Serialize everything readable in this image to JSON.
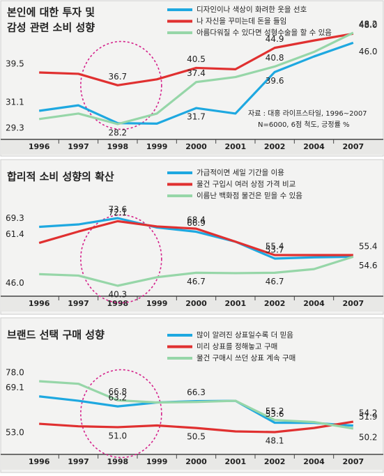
{
  "chart_data": [
    {
      "type": "line",
      "title": [
        "본인에 대한 투자 및",
        "감성 관련 소비 성향"
      ],
      "annotations": [
        "자료 : 대홍 라이프스타일, 1996~2007",
        "N=6000, 6점 척도, 긍정률 %"
      ],
      "categories": [
        "1996",
        "1997",
        "1998",
        "1999",
        "2000",
        "2001",
        "2002",
        "2004",
        "2007"
      ],
      "series": [
        {
          "name": "디자인이나 색상이 화려한 옷을 선호",
          "color": "#1ea8e0",
          "values": [
            31.1,
            32.3,
            28.4,
            28.3,
            31.7,
            30.5,
            39.6,
            43.0,
            46.0
          ],
          "value_labels": [
            "31.1",
            null,
            null,
            null,
            "31.7",
            null,
            "39.6",
            null,
            "46.0"
          ]
        },
        {
          "name": "나 자신을 꾸미는데 돈을 들임",
          "color": "#e03030",
          "values": [
            39.5,
            39.2,
            36.7,
            38.0,
            40.5,
            40.2,
            44.9,
            46.5,
            48.0
          ],
          "value_labels": [
            "39.5",
            null,
            "36.7",
            null,
            "40.5",
            null,
            "44.9",
            null,
            "48.0"
          ]
        },
        {
          "name": "아름다워질 수 있다면 성형수술을 할 수 있음",
          "color": "#96d6a8",
          "values": [
            29.3,
            30.5,
            28.2,
            30.5,
            37.4,
            38.5,
            40.8,
            44.0,
            48.2
          ],
          "value_labels": [
            "29.3",
            null,
            "28.2",
            null,
            "37.4",
            null,
            "40.8",
            null,
            "48.2"
          ]
        }
      ]
    },
    {
      "type": "line",
      "title": "합리적 소비 성향의 확산",
      "categories": [
        "1996",
        "1997",
        "1998",
        "1999",
        "2000",
        "2001",
        "2002",
        "2004",
        "2007"
      ],
      "series": [
        {
          "name": "가급적이면 세일 기간을 이용",
          "color": "#1ea8e0",
          "values": [
            69.3,
            70.5,
            73.6,
            69.0,
            66.9,
            62.0,
            53.7,
            54.3,
            54.6
          ],
          "value_labels": [
            "69.3",
            null,
            "73.6",
            null,
            "66.9",
            null,
            "53.7",
            null,
            "54.6"
          ]
        },
        {
          "name": "물건 구입시 여러 상점 가격 비교",
          "color": "#e03030",
          "values": [
            61.4,
            67.0,
            72.1,
            69.5,
            68.4,
            62.0,
            55.4,
            55.4,
            55.4
          ],
          "value_labels": [
            "61.4",
            null,
            "72.1",
            null,
            "68.4",
            null,
            "55.4",
            null,
            "55.4"
          ]
        },
        {
          "name": "이름난 백화점 물건은 믿을 수 있음",
          "color": "#96d6a8",
          "values": [
            46.0,
            45.3,
            40.3,
            44.5,
            46.7,
            46.5,
            46.7,
            48.5,
            54.6
          ],
          "value_labels": [
            "46.0",
            null,
            "40.3",
            null,
            "46.7",
            null,
            "46.7",
            null,
            null
          ]
        }
      ]
    },
    {
      "type": "line",
      "title": "브랜드 선택 구매 성향",
      "categories": [
        "1996",
        "1997",
        "1998",
        "1999",
        "2000",
        "2001",
        "2002",
        "2004",
        "2007"
      ],
      "series": [
        {
          "name": "많이 알려진 상표일수록 더 믿음",
          "color": "#1ea8e0",
          "values": [
            69.1,
            66.5,
            63.2,
            65.5,
            66.3,
            66.5,
            53.6,
            53.5,
            51.9
          ],
          "value_labels": [
            "69.1",
            null,
            "63.2",
            null,
            "66.3",
            null,
            "53.6",
            null,
            "51.9"
          ]
        },
        {
          "name": "미리 상표를 정해놓고 구매",
          "color": "#e03030",
          "values": [
            53.0,
            51.5,
            51.0,
            52.0,
            50.5,
            48.5,
            48.1,
            50.5,
            54.2
          ],
          "value_labels": [
            "53.0",
            null,
            "51.0",
            null,
            "50.5",
            null,
            "48.1",
            null,
            "54.2"
          ]
        },
        {
          "name": "물건 구매시 쓰던 상표 계속 구매",
          "color": "#96d6a8",
          "values": [
            78.0,
            76.5,
            66.8,
            65.5,
            65.8,
            66.5,
            55.2,
            54.0,
            50.2
          ],
          "value_labels": [
            "78.0",
            null,
            "66.8",
            null,
            null,
            null,
            "55.2",
            null,
            "50.2"
          ]
        }
      ]
    }
  ]
}
